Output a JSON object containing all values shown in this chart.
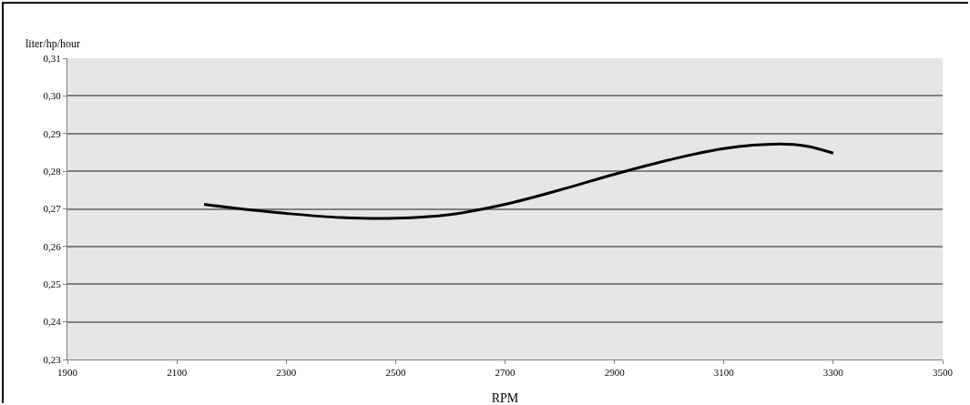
{
  "chart_data": {
    "type": "line",
    "xlabel": "RPM",
    "ylabel": "liter/hp/hour",
    "x": [
      2150,
      2200,
      2300,
      2400,
      2500,
      2600,
      2700,
      2800,
      2900,
      3000,
      3100,
      3200,
      3250,
      3300
    ],
    "series": [
      {
        "color": "#000000",
        "values": [
          0.2712,
          0.2703,
          0.2688,
          0.2677,
          0.2675,
          0.2685,
          0.2712,
          0.275,
          0.2792,
          0.283,
          0.286,
          0.2872,
          0.2867,
          0.2848
        ]
      }
    ],
    "xlim": [
      1900,
      3500
    ],
    "xticks": [
      1900,
      2100,
      2300,
      2500,
      2700,
      2900,
      3100,
      3300,
      3500
    ],
    "ylim": [
      0.23,
      0.31
    ],
    "yticks": [
      {
        "value": 0.23,
        "label": "0,23"
      },
      {
        "value": 0.24,
        "label": "0,24"
      },
      {
        "value": 0.25,
        "label": "0,25"
      },
      {
        "value": 0.26,
        "label": "0,26"
      },
      {
        "value": 0.27,
        "label": "0,27"
      },
      {
        "value": 0.28,
        "label": "0,28"
      },
      {
        "value": 0.29,
        "label": "0,29"
      },
      {
        "value": 0.3,
        "label": "0,30"
      },
      {
        "value": 0.31,
        "label": "0,31"
      }
    ],
    "grid": "y",
    "legend": false,
    "marker": "none",
    "line_style": "solid"
  }
}
